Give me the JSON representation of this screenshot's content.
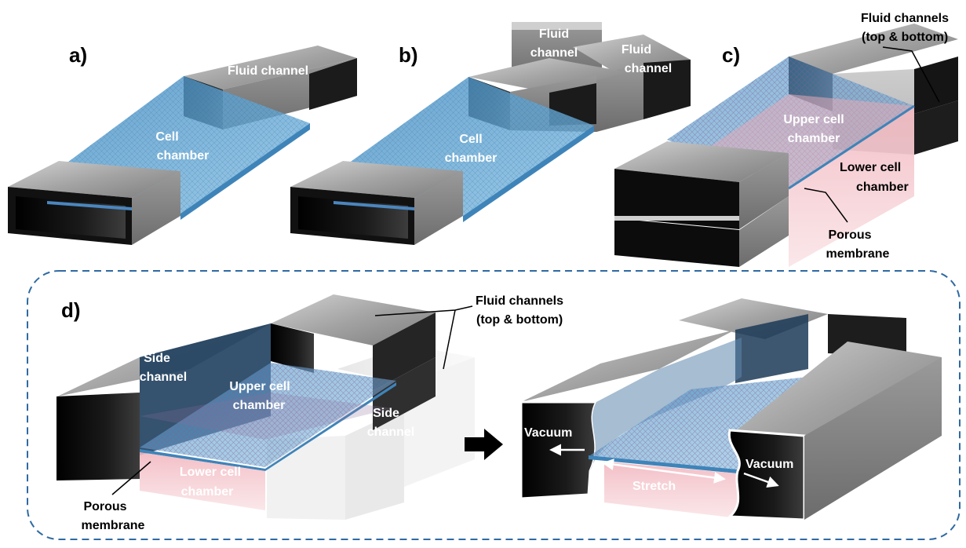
{
  "panels": {
    "a": {
      "letter": "a)",
      "fluid_channel": "Fluid channel",
      "cell_chamber_1": "Cell",
      "cell_chamber_2": "chamber"
    },
    "b": {
      "letter": "b)",
      "fluid_channel_1a": "Fluid",
      "fluid_channel_1b": "channel",
      "fluid_channel_2a": "Fluid",
      "fluid_channel_2b": "channel",
      "cell_chamber_1": "Cell",
      "cell_chamber_2": "chamber"
    },
    "c": {
      "letter": "c)",
      "fluid_channels_1": "Fluid channels",
      "fluid_channels_2": "(top & bottom)",
      "upper_1": "Upper cell",
      "upper_2": "chamber",
      "lower_1": "Lower cell",
      "lower_2": "chamber",
      "porous_1": "Porous",
      "porous_2": "membrane"
    },
    "d": {
      "letter": "d)",
      "fluid_channels_1": "Fluid channels",
      "fluid_channels_2": "(top & bottom)",
      "side_left_1": "Side",
      "side_left_2": "channel",
      "side_right_1": "Side",
      "side_right_2": "channel",
      "upper_1": "Upper cell",
      "upper_2": "chamber",
      "lower_1": "Lower cell",
      "lower_2": "chamber",
      "porous_1": "Porous",
      "porous_2": "membrane",
      "vacuum_left": "Vacuum",
      "vacuum_right": "Vacuum",
      "stretch": "Stretch"
    }
  },
  "colors": {
    "steel": "#a9a9a9",
    "steel_dark": "#111111",
    "chamber_blue": "#5fa3d3",
    "membrane_pink": "#e8b4c0",
    "dashed_border": "#2f6aa3"
  }
}
